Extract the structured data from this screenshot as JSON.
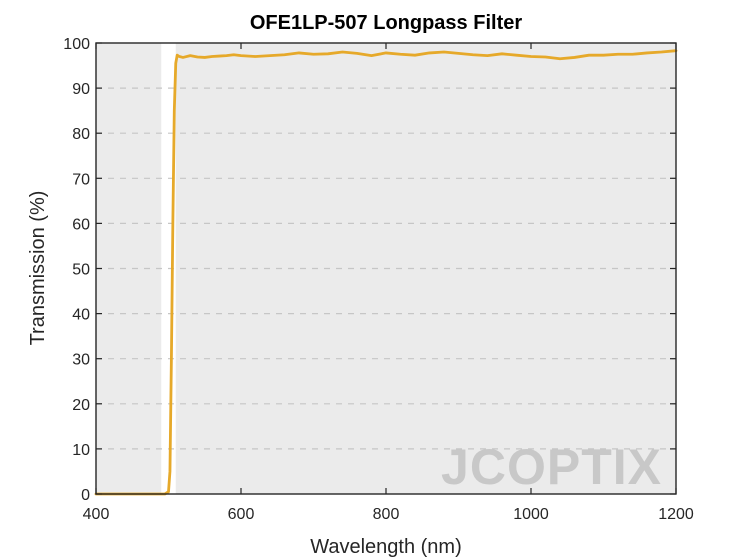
{
  "chart_data": {
    "type": "line",
    "title": "OFE1LP-507 Longpass Filter",
    "xlabel": "Wavelength (nm)",
    "ylabel": "Transmission (%)",
    "xlim": [
      400,
      1200
    ],
    "ylim": [
      0,
      100
    ],
    "xticks": [
      400,
      600,
      800,
      1000,
      1200
    ],
    "yticks": [
      0,
      10,
      20,
      30,
      40,
      50,
      60,
      70,
      80,
      90,
      100
    ],
    "grid": "horizontal-dashed",
    "legend": "none",
    "shaded_region": {
      "x_start": 400,
      "x_end": 1200,
      "gap_start": 490,
      "gap_end": 510
    },
    "series": [
      {
        "color": "#e6a92a",
        "x": [
          400,
          450,
          495,
          500,
          502,
          504,
          506,
          508,
          510,
          512,
          515,
          520,
          530,
          540,
          550,
          560,
          570,
          580,
          590,
          600,
          620,
          640,
          660,
          680,
          700,
          720,
          740,
          760,
          780,
          800,
          820,
          840,
          860,
          880,
          900,
          920,
          940,
          960,
          980,
          1000,
          1020,
          1040,
          1060,
          1080,
          1100,
          1120,
          1140,
          1160,
          1180,
          1200
        ],
        "y": [
          0,
          0,
          0,
          0.5,
          5,
          30,
          60,
          85,
          95.5,
          97.3,
          97.0,
          96.8,
          97.2,
          96.9,
          96.8,
          97.0,
          97.1,
          97.2,
          97.4,
          97.2,
          97.0,
          97.2,
          97.4,
          97.8,
          97.5,
          97.6,
          98.0,
          97.7,
          97.2,
          97.8,
          97.5,
          97.3,
          97.8,
          98.0,
          97.7,
          97.4,
          97.2,
          97.6,
          97.3,
          97.0,
          96.9,
          96.5,
          96.8,
          97.3,
          97.3,
          97.5,
          97.5,
          97.8,
          98.0,
          98.3
        ]
      }
    ]
  },
  "watermark": {
    "text": "JCOPTIX"
  }
}
